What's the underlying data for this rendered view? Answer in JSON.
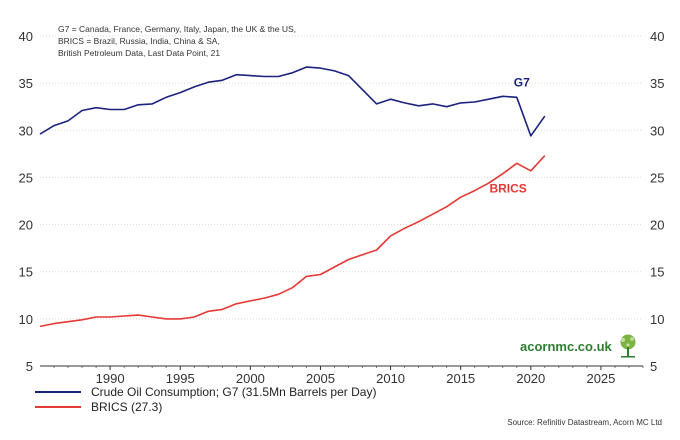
{
  "chart_data": {
    "type": "line",
    "notes": [
      "G7 = Canada, France, Germany, Italy, Japan, the UK & the US,",
      "BRICS = Brazil, Russia, India, China & SA,",
      "British Petroleum Data, Last Data Point, 21"
    ],
    "x_ticks": [
      "1990",
      "1995",
      "2000",
      "2005",
      "2010",
      "2015",
      "2020",
      "2025"
    ],
    "y_ticks": [
      "40",
      "35",
      "30",
      "25",
      "20",
      "15",
      "10",
      "5"
    ],
    "xlim": [
      1985,
      2028
    ],
    "ylim": [
      5,
      40
    ],
    "grid": true,
    "legend_position": "bottom-left",
    "x": [
      1985,
      1986,
      1987,
      1988,
      1989,
      1990,
      1991,
      1992,
      1993,
      1994,
      1995,
      1996,
      1997,
      1998,
      1999,
      2000,
      2001,
      2002,
      2003,
      2004,
      2005,
      2006,
      2007,
      2008,
      2009,
      2010,
      2011,
      2012,
      2013,
      2014,
      2015,
      2016,
      2017,
      2018,
      2019,
      2020,
      2021
    ],
    "series": [
      {
        "name": "Crude Oil Consumption; G7 (31.5Mn Barrels per Day)",
        "label": "G7",
        "color": "#1a237e",
        "values": [
          29.6,
          30.5,
          31.0,
          32.1,
          32.4,
          32.2,
          32.2,
          32.7,
          32.8,
          33.5,
          34.0,
          34.6,
          35.1,
          35.3,
          35.9,
          35.8,
          35.7,
          35.7,
          36.1,
          36.7,
          36.6,
          36.3,
          35.8,
          34.3,
          32.8,
          33.3,
          32.9,
          32.6,
          32.8,
          32.5,
          32.9,
          33.0,
          33.3,
          33.6,
          33.5,
          29.4,
          31.5
        ]
      },
      {
        "name": "BRICS (27.3)",
        "label": "BRICS",
        "color": "#e53935",
        "values": [
          9.2,
          9.5,
          9.7,
          9.9,
          10.2,
          10.2,
          10.3,
          10.4,
          10.2,
          10.0,
          10.0,
          10.2,
          10.8,
          11.0,
          11.6,
          11.9,
          12.2,
          12.6,
          13.3,
          14.5,
          14.7,
          15.5,
          16.3,
          16.8,
          17.3,
          18.8,
          19.6,
          20.3,
          21.1,
          21.9,
          22.9,
          23.6,
          24.4,
          25.4,
          26.5,
          25.7,
          27.3
        ]
      }
    ]
  },
  "branding": {
    "logo_text": "acornmc.co.uk"
  },
  "source": "Source: Refinitiv Datastream, Acorn MC Ltd"
}
